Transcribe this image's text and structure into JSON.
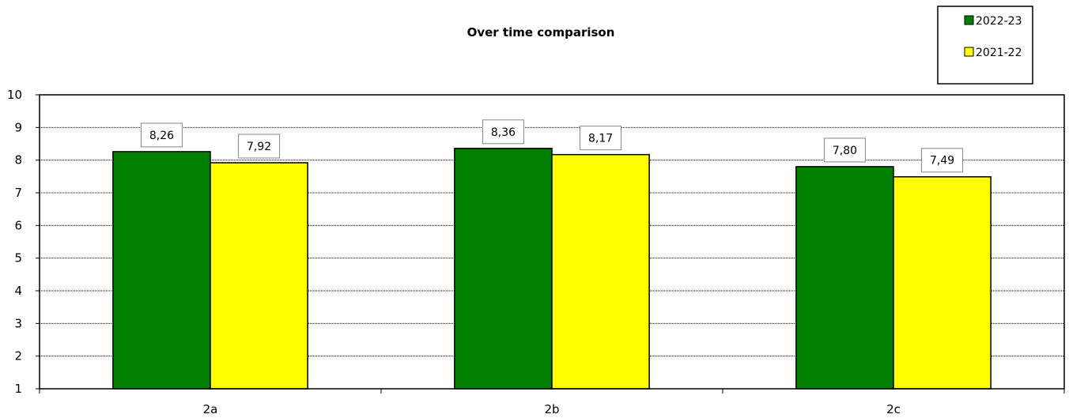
{
  "chart_data": {
    "type": "bar",
    "title": "Over time comparison",
    "xlabel": "",
    "ylabel": "",
    "categories": [
      "2a",
      "2b",
      "2c"
    ],
    "series": [
      {
        "name": "2022-23",
        "color": "#008000",
        "values": [
          8.26,
          8.36,
          7.8
        ],
        "labels": [
          "8,26",
          "8,36",
          "7,80"
        ]
      },
      {
        "name": "2021-22",
        "color": "#ffff00",
        "values": [
          7.92,
          8.17,
          7.49
        ],
        "labels": [
          "7,92",
          "8,17",
          "7,49"
        ]
      }
    ],
    "ylim": [
      1,
      10
    ],
    "yticks": [
      "1",
      "2",
      "3",
      "4",
      "5",
      "6",
      "7",
      "8",
      "9",
      "10"
    ],
    "grid": true,
    "legend_position": "top-right"
  }
}
